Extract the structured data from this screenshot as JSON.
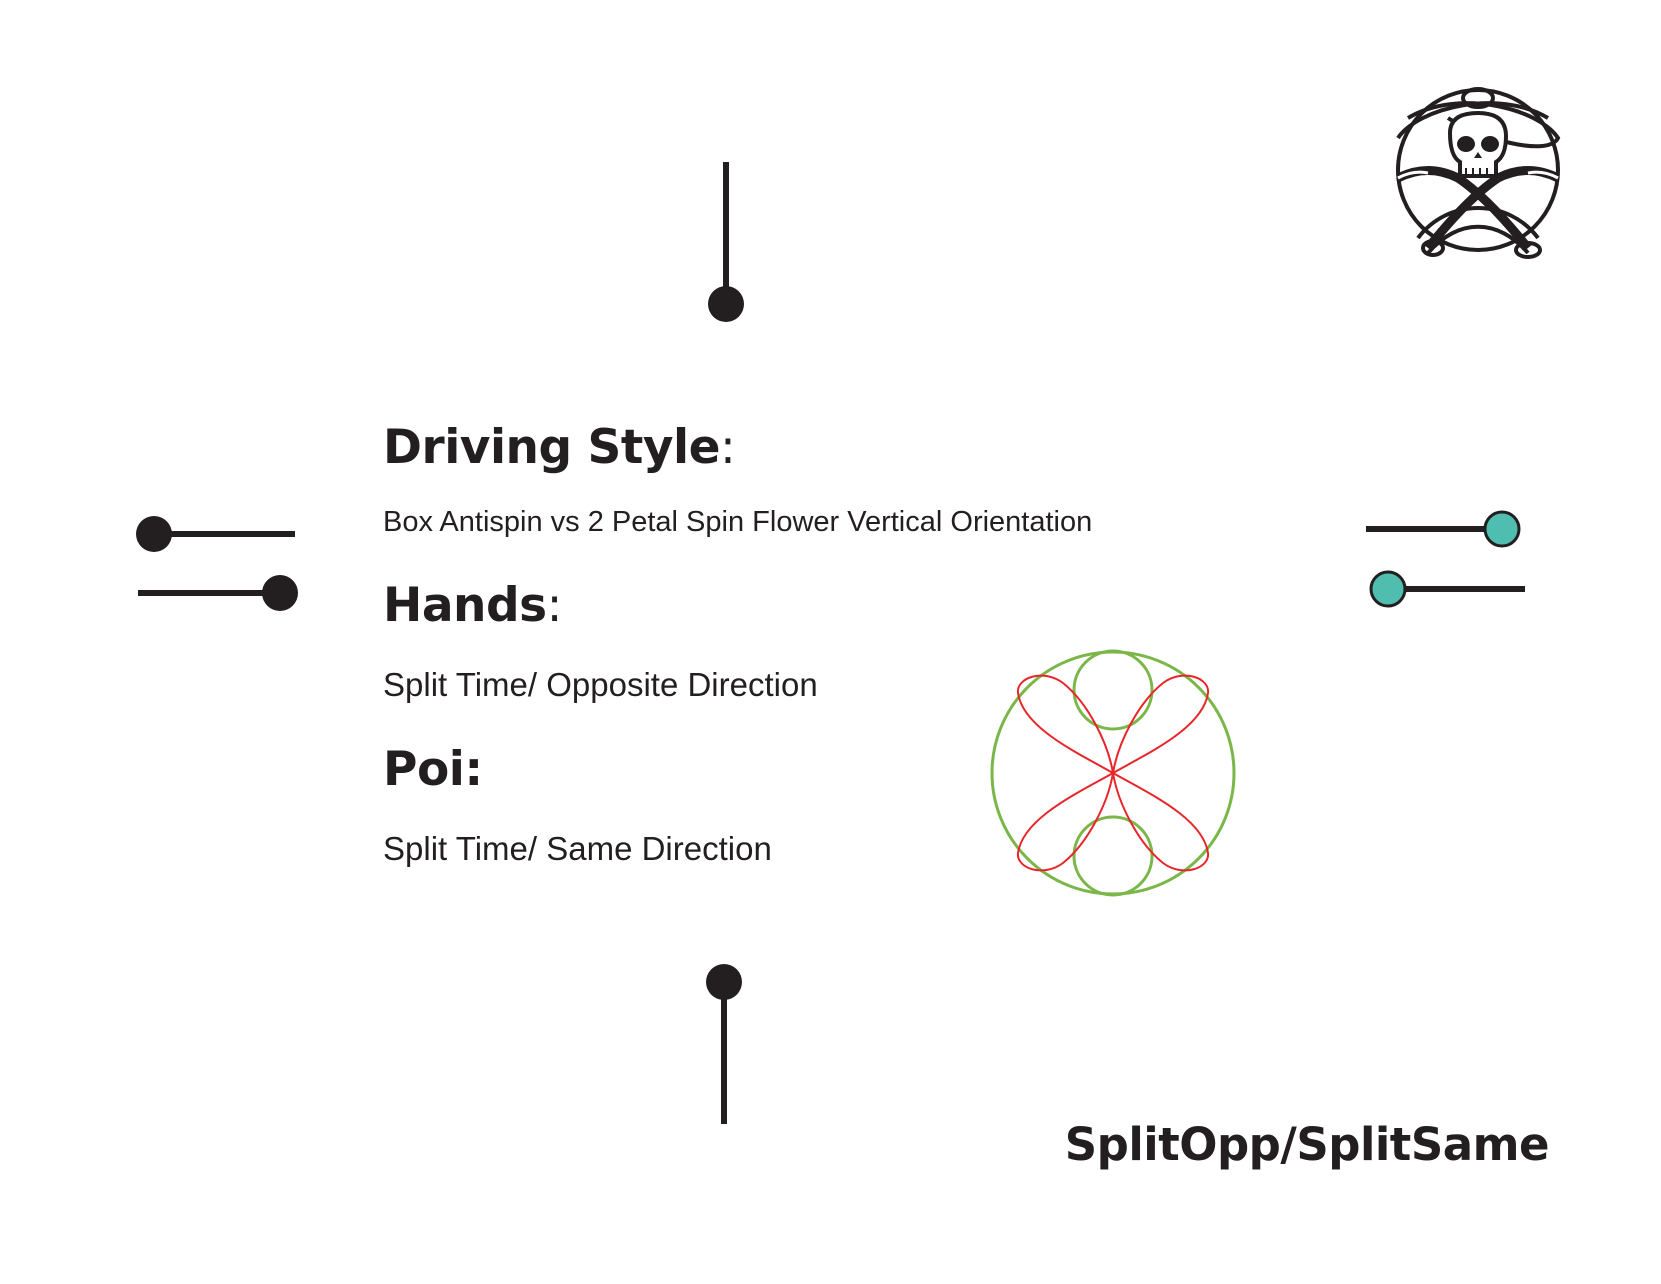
{
  "driving_style": {
    "heading": "Driving Style",
    "colon": ":",
    "value": "Box Antispin vs  2 Petal Spin Flower Vertical Orientation"
  },
  "hands": {
    "heading": "Hands",
    "colon": ":",
    "value": "Split Time/ Opposite Direction"
  },
  "poi": {
    "heading": "Poi:",
    "value": "Split Time/ Same Direction"
  },
  "footer": {
    "title": "SplitOpp/SplitSame"
  },
  "colors": {
    "ink": "#231f20",
    "teal": "#4fbdb0",
    "green": "#7ab648",
    "red": "#e8262a"
  },
  "icons": {
    "logo": "skull-crossbones-logo-icon",
    "diagram": "antispin-flower-diagram-icon"
  }
}
